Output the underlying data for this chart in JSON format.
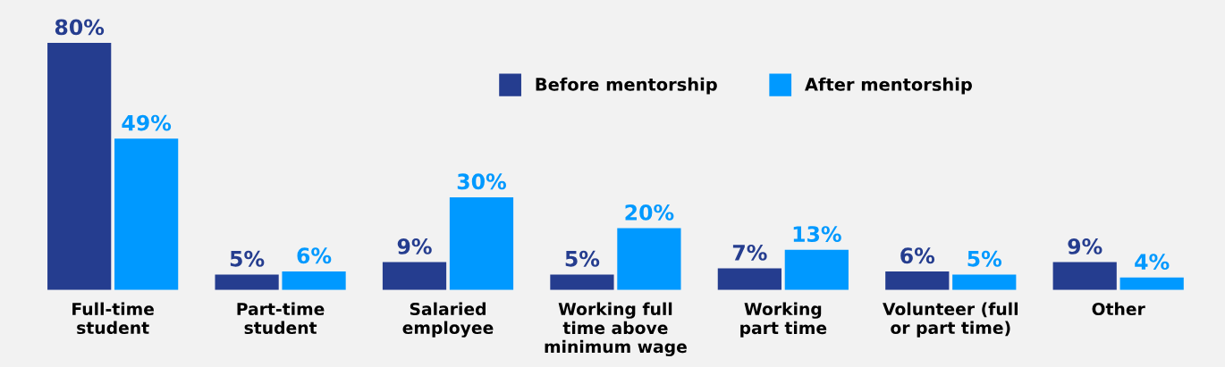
{
  "chart_data": {
    "type": "bar",
    "categories": [
      "Full-time\nstudent",
      "Part-time\nstudent",
      "Salaried\nemployee",
      "Working full\ntime above\nminimum wage",
      "Working\npart time",
      "Volunteer (full\nor part time)",
      "Other"
    ],
    "series": [
      {
        "name": "Before mentorship",
        "color": "#253d8f",
        "values": [
          80,
          5,
          9,
          5,
          7,
          6,
          9
        ],
        "value_labels": [
          "80%",
          "5%",
          "9%",
          "5%",
          "7%",
          "6%",
          "9%"
        ]
      },
      {
        "name": "After mentorship",
        "color": "#0099ff",
        "values": [
          49,
          6,
          30,
          20,
          13,
          5,
          4
        ],
        "value_labels": [
          "49%",
          "6%",
          "30%",
          "20%",
          "13%",
          "5%",
          "4%"
        ]
      }
    ],
    "legend": "top",
    "grid": false,
    "tick_labels": "x"
  }
}
